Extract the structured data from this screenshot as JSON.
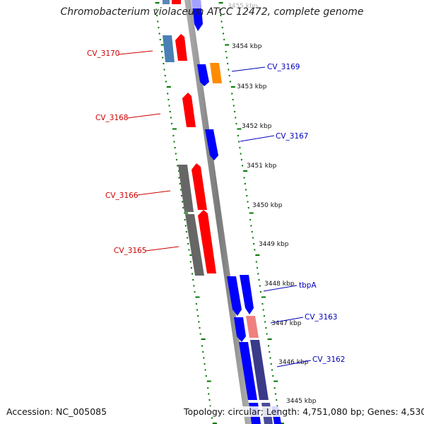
{
  "title": "Chromobacterium violaceum ATCC 12472, complete genome",
  "footer": {
    "accession": "Accession: NC_005085",
    "summary": "Topology: circular; Length: 4,751,080 bp; Genes: 4,530"
  },
  "kbp_labels": [
    "3455 kbp",
    "3454 kbp",
    "3453 kbp",
    "3452 kbp",
    "3451 kbp",
    "3450 kbp",
    "3449 kbp",
    "3448 kbp",
    "3447 kbp",
    "3446 kbp",
    "3445 kbp"
  ],
  "gene_labels": {
    "left": [
      "CV_3170",
      "CV_3168",
      "CV_3166",
      "CV_3165"
    ],
    "right": [
      "CV_3169",
      "CV_3167",
      "tbpA",
      "CV_3163",
      "CV_3162"
    ]
  },
  "colors": {
    "forward_gene": "#ff0000",
    "reverse_gene": "#0000ff",
    "backbone": "#8c8c8c",
    "ticks": "#007700",
    "highlight_orange": "#ff8c00",
    "highlight_pink": "#f08080",
    "dark_feature": "#666666"
  }
}
